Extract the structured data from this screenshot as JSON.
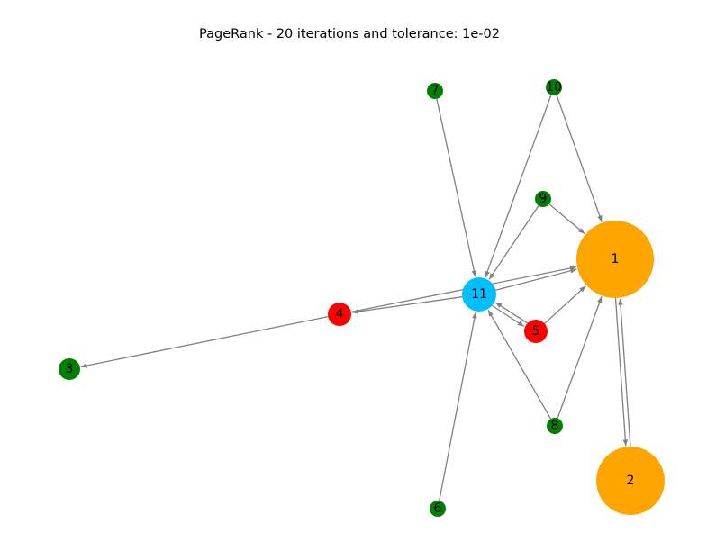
{
  "title": "PageRank - 20 iterations and tolerance: 1e-02",
  "colors": {
    "edge": "#808080",
    "orange": "#FFA500",
    "red": "#FF0000",
    "green": "#008000",
    "deepskyblue": "#00BFFF"
  },
  "nodes": [
    {
      "id": "1",
      "label": "1",
      "color": "orange"
    },
    {
      "id": "2",
      "label": "2",
      "color": "orange"
    },
    {
      "id": "3",
      "label": "3",
      "color": "green"
    },
    {
      "id": "4",
      "label": "4",
      "color": "red"
    },
    {
      "id": "5",
      "label": "5",
      "color": "red"
    },
    {
      "id": "6",
      "label": "6",
      "color": "green"
    },
    {
      "id": "7",
      "label": "7",
      "color": "green"
    },
    {
      "id": "8",
      "label": "8",
      "color": "green"
    },
    {
      "id": "9",
      "label": "9",
      "color": "green"
    },
    {
      "id": "10",
      "label": "10",
      "color": "green"
    },
    {
      "id": "11",
      "label": "11",
      "color": "deepskyblue"
    }
  ],
  "edges": [
    {
      "source": "1",
      "target": "2"
    },
    {
      "source": "2",
      "target": "1"
    },
    {
      "source": "4",
      "target": "1"
    },
    {
      "source": "4",
      "target": "3"
    },
    {
      "source": "5",
      "target": "1"
    },
    {
      "source": "5",
      "target": "11"
    },
    {
      "source": "11",
      "target": "5"
    },
    {
      "source": "11",
      "target": "1"
    },
    {
      "source": "11",
      "target": "4"
    },
    {
      "source": "6",
      "target": "11"
    },
    {
      "source": "7",
      "target": "11"
    },
    {
      "source": "8",
      "target": "1"
    },
    {
      "source": "8",
      "target": "11"
    },
    {
      "source": "9",
      "target": "1"
    },
    {
      "source": "9",
      "target": "11"
    },
    {
      "source": "10",
      "target": "1"
    },
    {
      "source": "10",
      "target": "11"
    }
  ]
}
